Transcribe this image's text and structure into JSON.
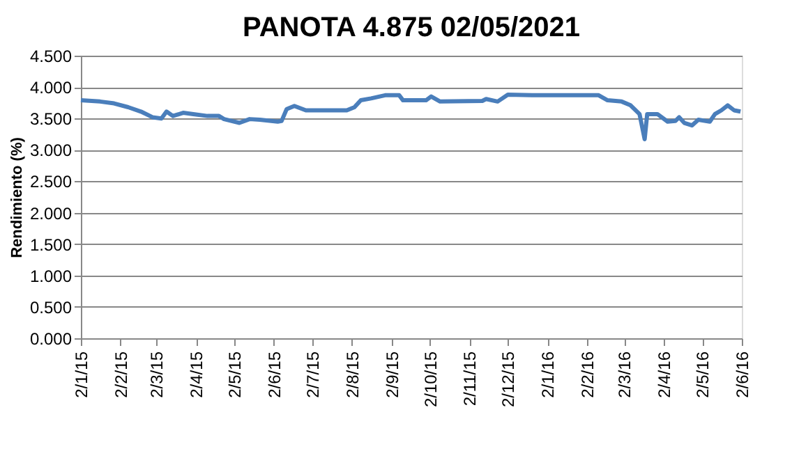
{
  "chart_data": {
    "type": "line",
    "title": "PANOTA 4.875 02/05/2021",
    "ylabel": "Rendimiento (%)",
    "x": [
      "2015-01-02",
      "2015-01-17",
      "2015-01-28",
      "2015-02-08",
      "2015-02-18",
      "2015-02-27",
      "2015-03-06",
      "2015-03-10",
      "2015-03-15",
      "2015-03-23",
      "2015-03-31",
      "2015-04-11",
      "2015-04-20",
      "2015-04-24",
      "2015-05-06",
      "2015-05-14",
      "2015-05-22",
      "2015-06-05",
      "2015-06-08",
      "2015-06-12",
      "2015-06-18",
      "2015-06-27",
      "2015-07-07",
      "2015-07-29",
      "2015-08-04",
      "2015-08-09",
      "2015-08-17",
      "2015-08-28",
      "2015-09-08",
      "2015-09-11",
      "2015-09-29",
      "2015-10-03",
      "2015-10-10",
      "2015-11-12",
      "2015-11-15",
      "2015-11-24",
      "2015-12-02",
      "2015-12-21",
      "2016-02-11",
      "2016-02-18",
      "2016-02-29",
      "2016-03-07",
      "2016-03-14",
      "2016-03-18",
      "2016-03-20",
      "2016-03-28",
      "2016-04-05",
      "2016-04-11",
      "2016-04-14",
      "2016-04-18",
      "2016-04-24",
      "2016-04-29",
      "2016-05-08",
      "2016-05-12",
      "2016-05-17",
      "2016-05-22",
      "2016-05-27",
      "2016-06-01"
    ],
    "series": [
      {
        "color": "#4a7ebb",
        "values": [
          3.79,
          3.77,
          3.74,
          3.68,
          3.61,
          3.52,
          3.5,
          3.61,
          3.54,
          3.59,
          3.57,
          3.54,
          3.54,
          3.49,
          3.43,
          3.49,
          3.48,
          3.45,
          3.46,
          3.65,
          3.7,
          3.63,
          3.63,
          3.63,
          3.68,
          3.79,
          3.82,
          3.87,
          3.87,
          3.79,
          3.79,
          3.85,
          3.77,
          3.78,
          3.81,
          3.77,
          3.88,
          3.87,
          3.87,
          3.79,
          3.77,
          3.71,
          3.57,
          3.17,
          3.57,
          3.57,
          3.45,
          3.46,
          3.52,
          3.43,
          3.39,
          3.48,
          3.45,
          3.57,
          3.63,
          3.71,
          3.63,
          3.61
        ]
      }
    ],
    "ylim": [
      0,
      4.5
    ],
    "yticks": [
      {
        "value": 0,
        "label": "0.000"
      },
      {
        "value": 0.5,
        "label": "0.500"
      },
      {
        "value": 1,
        "label": "1.000"
      },
      {
        "value": 1.5,
        "label": "1.500"
      },
      {
        "value": 2,
        "label": "2.000"
      },
      {
        "value": 2.5,
        "label": "2.500"
      },
      {
        "value": 3,
        "label": "3.000"
      },
      {
        "value": 3.5,
        "label": "3.500"
      },
      {
        "value": 4,
        "label": "4.000"
      },
      {
        "value": 4.5,
        "label": "4.500"
      }
    ],
    "xlim": [
      "2015-01-02",
      "2016-06-02"
    ],
    "xticks": [
      {
        "value": "2015-01-02",
        "label": "2/1/15"
      },
      {
        "value": "2015-02-02",
        "label": "2/2/15"
      },
      {
        "value": "2015-03-02",
        "label": "2/3/15"
      },
      {
        "value": "2015-04-02",
        "label": "2/4/15"
      },
      {
        "value": "2015-05-02",
        "label": "2/5/15"
      },
      {
        "value": "2015-06-02",
        "label": "2/6/15"
      },
      {
        "value": "2015-07-02",
        "label": "2/7/15"
      },
      {
        "value": "2015-08-02",
        "label": "2/8/15"
      },
      {
        "value": "2015-09-02",
        "label": "2/9/15"
      },
      {
        "value": "2015-10-02",
        "label": "2/10/15"
      },
      {
        "value": "2015-11-02",
        "label": "2/11/15"
      },
      {
        "value": "2015-12-02",
        "label": "2/12/15"
      },
      {
        "value": "2016-01-02",
        "label": "2/1/16"
      },
      {
        "value": "2016-02-02",
        "label": "2/2/16"
      },
      {
        "value": "2016-03-02",
        "label": "2/3/16"
      },
      {
        "value": "2016-04-02",
        "label": "2/4/16"
      },
      {
        "value": "2016-05-02",
        "label": "2/5/16"
      },
      {
        "value": "2016-06-02",
        "label": "2/6/16"
      }
    ],
    "grid": "y",
    "legend": false,
    "marker": "none",
    "line_style": "solid"
  }
}
